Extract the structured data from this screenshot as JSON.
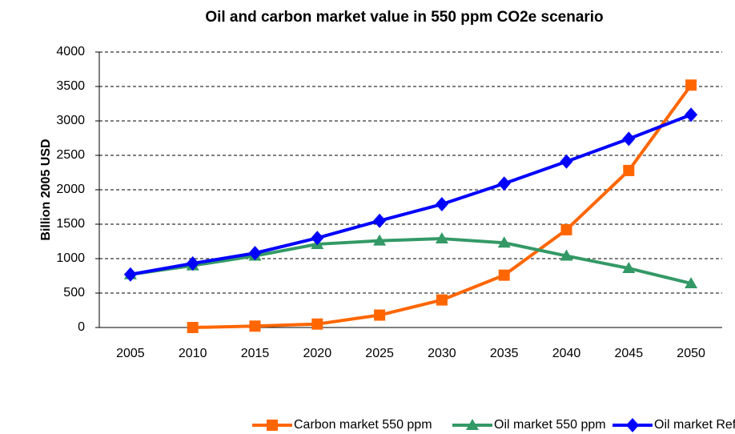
{
  "chart_data": {
    "type": "line",
    "title": "Oil and carbon market value in 550 ppm CO2e scenario",
    "y_label": "Billion 2005 USD",
    "categories": [
      "2005",
      "2010",
      "2015",
      "2020",
      "2025",
      "2030",
      "2035",
      "2040",
      "2045",
      "2050"
    ],
    "series": [
      {
        "name": "Carbon market 550 ppm",
        "color": "#ff6600",
        "marker": "square",
        "values": [
          null,
          0,
          20,
          50,
          180,
          400,
          760,
          1420,
          2280,
          3520
        ]
      },
      {
        "name": "Oil market 550 ppm",
        "color": "#339966",
        "marker": "triangle",
        "values": [
          770,
          900,
          1040,
          1210,
          1260,
          1290,
          1230,
          1040,
          860,
          640
        ]
      },
      {
        "name": "Oil market Reference",
        "color": "#0000ff",
        "marker": "diamond",
        "values": [
          770,
          930,
          1080,
          1300,
          1550,
          1790,
          2090,
          2410,
          2740,
          3090
        ]
      }
    ],
    "ylim": [
      0,
      4000
    ],
    "yticks": [
      0,
      500,
      1000,
      1500,
      2000,
      2500,
      3000,
      3500,
      4000
    ],
    "grid": true,
    "legend": "bottom"
  }
}
